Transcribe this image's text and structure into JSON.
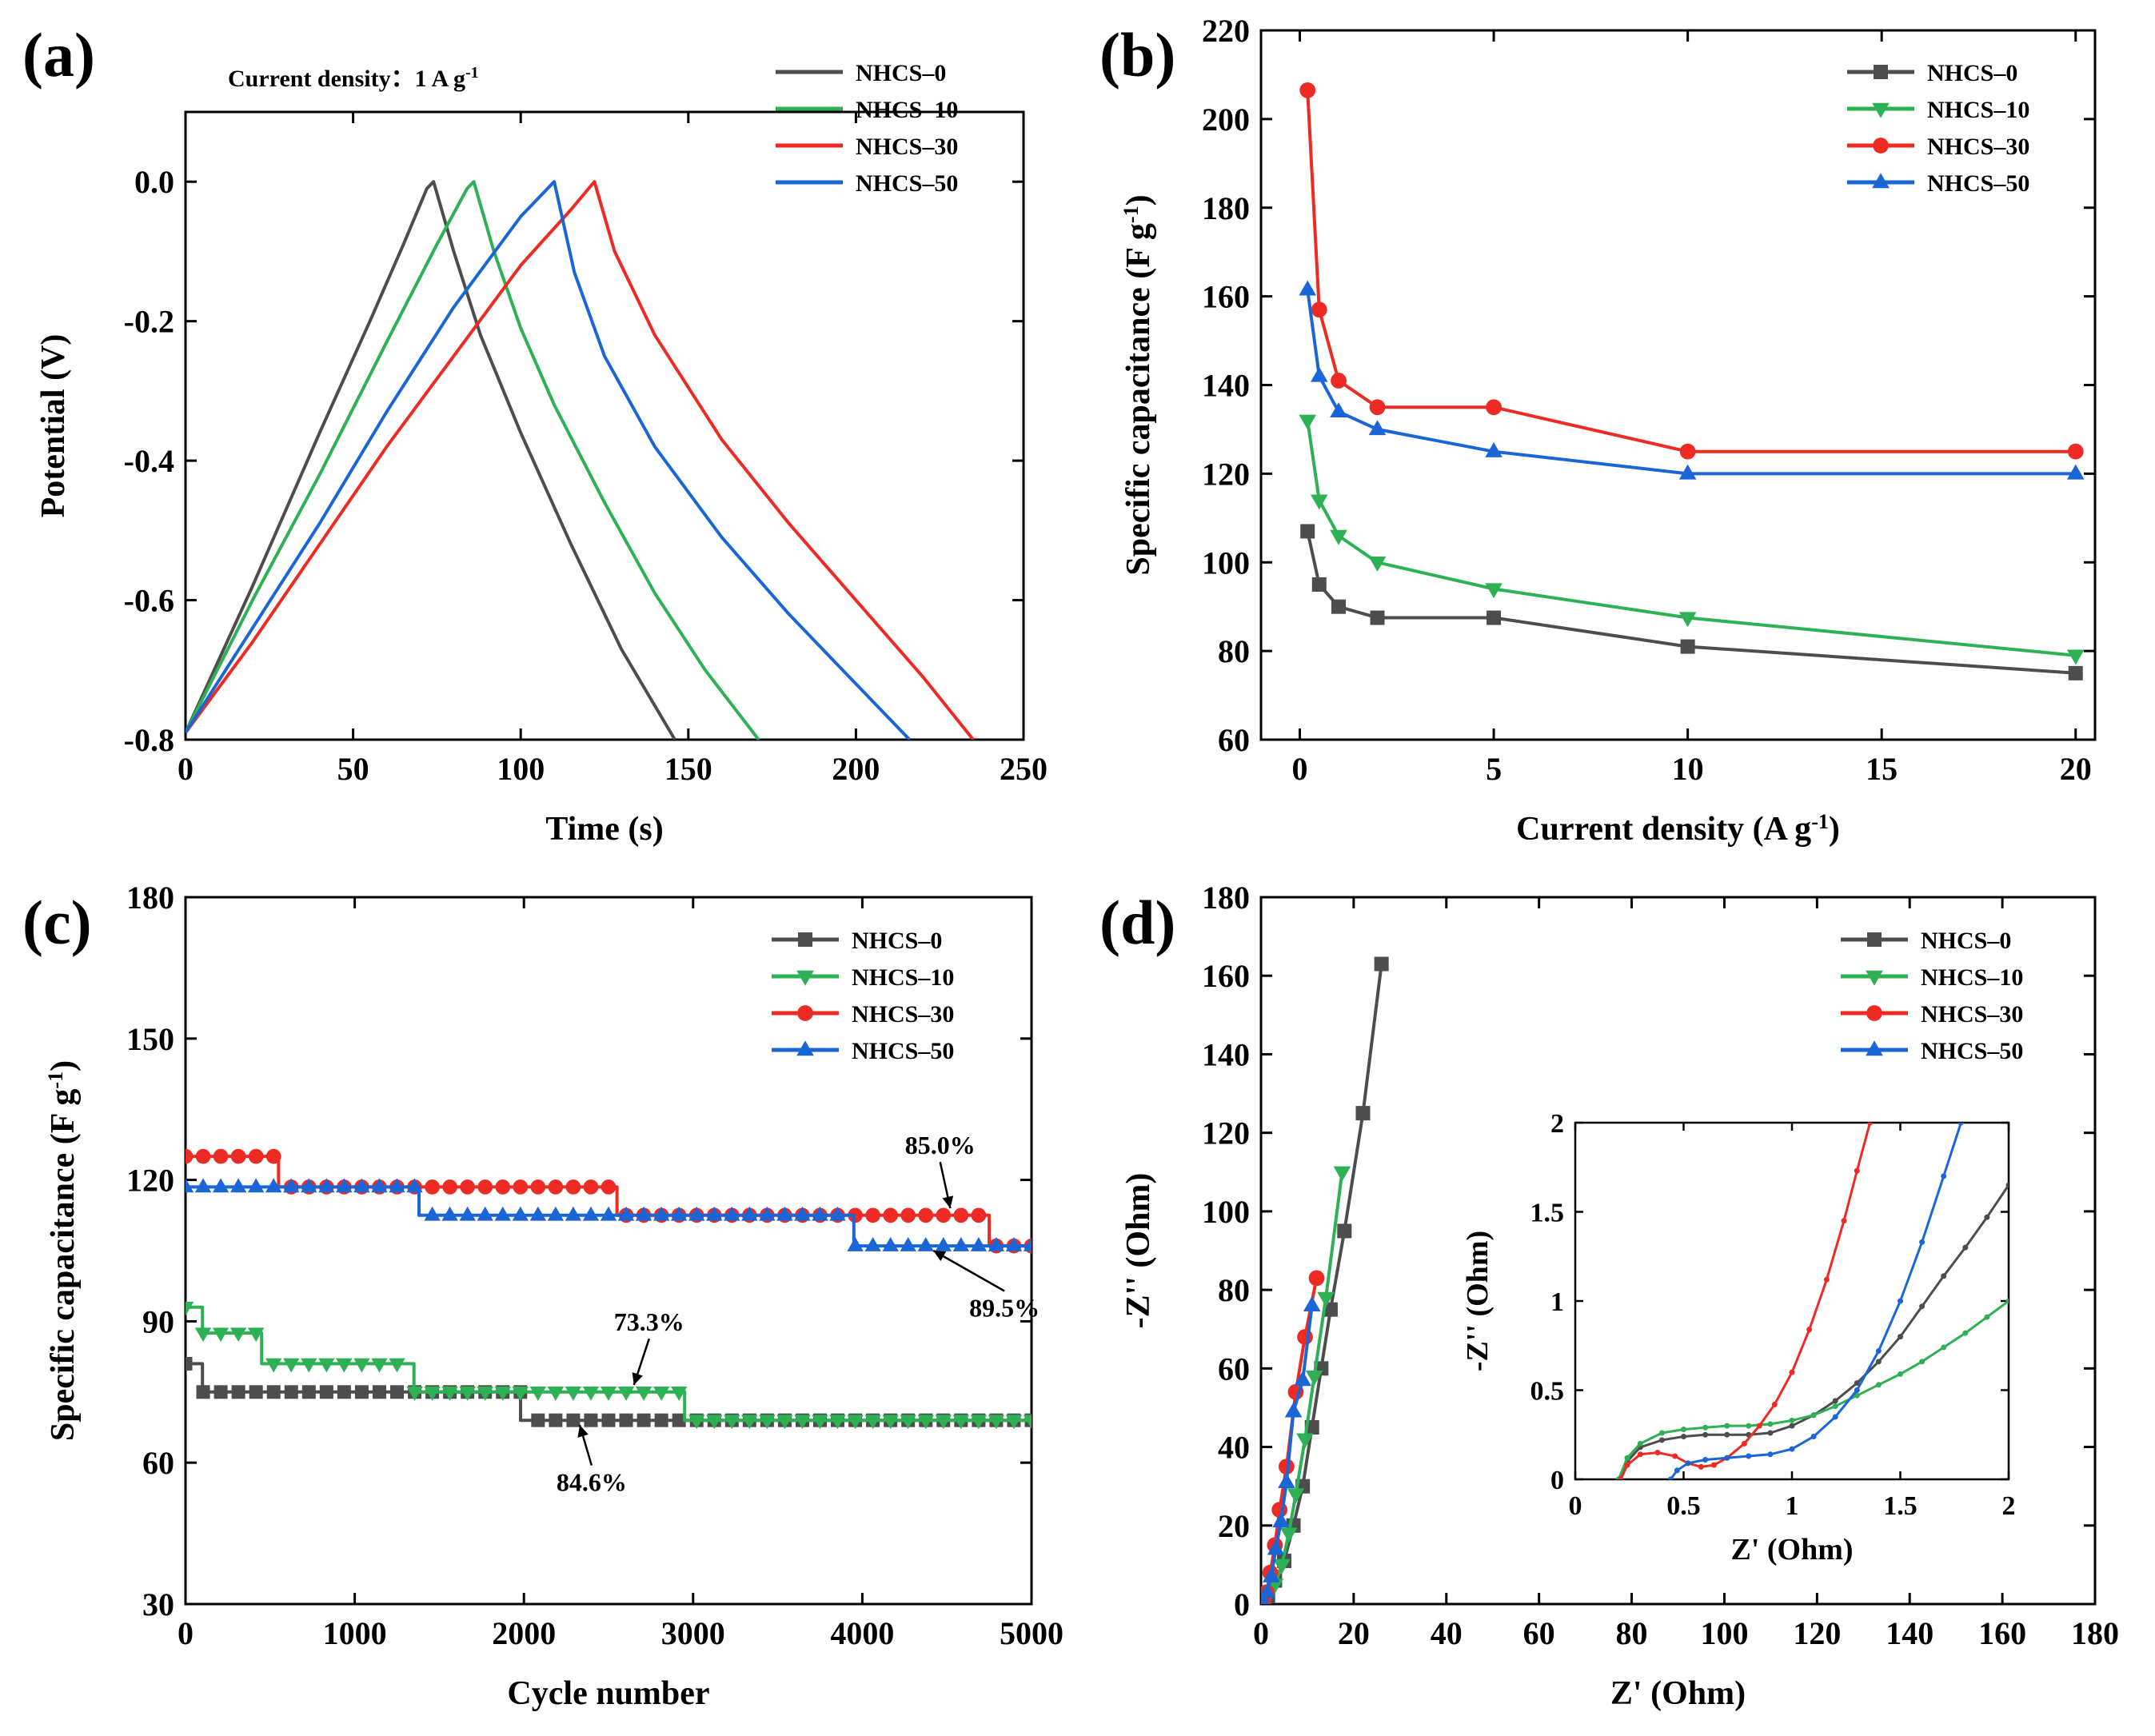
{
  "figure": {
    "panel_labels": [
      "(a)",
      "(b)",
      "(c)",
      "(d)"
    ],
    "colors": {
      "NHCS-0": "#4d4d4d",
      "NHCS-10": "#2db154",
      "NHCS-30": "#ee2a24",
      "NHCS-50": "#1b66d6"
    }
  },
  "chart_data": [
    {
      "id": "a",
      "type": "line",
      "title": "",
      "annotation": "Current density：1 A g",
      "annotation_sup": "-1",
      "xlabel": "Time (s)",
      "ylabel": "Potential (V)",
      "xlim": [
        0,
        250
      ],
      "ylim": [
        -0.8,
        0.1
      ],
      "xticks": [
        0,
        50,
        100,
        150,
        200,
        250
      ],
      "yticks": [
        -0.8,
        -0.6,
        -0.4,
        -0.2,
        0.0
      ],
      "ytick_labels": [
        "-0.8",
        "-0.6",
        "-0.4",
        "-0.2",
        "0.0"
      ],
      "legend_position": "top-right",
      "series": [
        {
          "name": "NHCS–0",
          "key": "NHCS-0",
          "marker": "none",
          "x": [
            0,
            20,
            40,
            55,
            65,
            72,
            74,
            80,
            88,
            100,
            115,
            130,
            146
          ],
          "y": [
            -0.79,
            -0.58,
            -0.36,
            -0.2,
            -0.09,
            -0.01,
            0.0,
            -0.1,
            -0.22,
            -0.36,
            -0.52,
            -0.67,
            -0.8
          ]
        },
        {
          "name": "NHCS–10",
          "key": "NHCS-10",
          "marker": "none",
          "x": [
            0,
            20,
            40,
            60,
            75,
            84,
            86,
            92,
            100,
            110,
            125,
            140,
            155,
            171
          ],
          "y": [
            -0.79,
            -0.6,
            -0.42,
            -0.23,
            -0.09,
            -0.01,
            0.0,
            -0.1,
            -0.21,
            -0.32,
            -0.46,
            -0.59,
            -0.7,
            -0.8
          ]
        },
        {
          "name": "NHCS–30",
          "key": "NHCS-30",
          "marker": "none",
          "x": [
            0,
            20,
            40,
            60,
            80,
            100,
            115,
            122,
            128,
            140,
            160,
            180,
            200,
            220,
            235
          ],
          "y": [
            -0.79,
            -0.66,
            -0.52,
            -0.38,
            -0.25,
            -0.12,
            -0.04,
            0.0,
            -0.1,
            -0.22,
            -0.37,
            -0.49,
            -0.6,
            -0.71,
            -0.8
          ]
        },
        {
          "name": "NHCS–50",
          "key": "NHCS-50",
          "marker": "none",
          "x": [
            0,
            20,
            40,
            60,
            80,
            100,
            108,
            110,
            116,
            125,
            140,
            160,
            180,
            200,
            216
          ],
          "y": [
            -0.79,
            -0.64,
            -0.49,
            -0.33,
            -0.18,
            -0.05,
            -0.01,
            0.0,
            -0.13,
            -0.25,
            -0.38,
            -0.51,
            -0.62,
            -0.72,
            -0.8
          ]
        }
      ]
    },
    {
      "id": "b",
      "type": "line",
      "title": "",
      "xlabel": "Current density (A g",
      "xlabel_sup": "-1",
      "xlabel_end": ")",
      "ylabel": "Specific capacitance (F g",
      "ylabel_sup": "-1",
      "ylabel_end": ")",
      "xlim": [
        -1,
        20.5
      ],
      "ylim": [
        60,
        220
      ],
      "xticks": [
        0,
        5,
        10,
        15,
        20
      ],
      "yticks": [
        60,
        80,
        100,
        120,
        140,
        160,
        180,
        200,
        220
      ],
      "legend_position": "top-right",
      "series": [
        {
          "name": "NHCS–0",
          "key": "NHCS-0",
          "marker": "square",
          "x": [
            0.2,
            0.5,
            1,
            2,
            5,
            10,
            20
          ],
          "y": [
            107,
            95,
            90,
            87.5,
            87.5,
            81,
            75
          ]
        },
        {
          "name": "NHCS–10",
          "key": "NHCS-10",
          "marker": "triangle-down",
          "x": [
            0.2,
            0.5,
            1,
            2,
            5,
            10,
            20
          ],
          "y": [
            132,
            114,
            106,
            100,
            94,
            87.5,
            79
          ]
        },
        {
          "name": "NHCS–30",
          "key": "NHCS-30",
          "marker": "circle",
          "x": [
            0.2,
            0.5,
            1,
            2,
            5,
            10,
            20
          ],
          "y": [
            206.5,
            157,
            141,
            135,
            135,
            125,
            125
          ]
        },
        {
          "name": "NHCS–50",
          "key": "NHCS-50",
          "marker": "triangle-up",
          "x": [
            0.2,
            0.5,
            1,
            2,
            5,
            10,
            20
          ],
          "y": [
            161.5,
            142,
            134,
            130,
            125,
            120,
            120
          ]
        }
      ]
    },
    {
      "id": "c",
      "type": "line",
      "title": "",
      "xlabel": "Cycle number",
      "ylabel": "Specific capacitance (F g",
      "ylabel_sup": "-1",
      "ylabel_end": ")",
      "xlim": [
        0,
        5000
      ],
      "ylim": [
        30,
        180
      ],
      "xticks": [
        0,
        1000,
        2000,
        3000,
        4000,
        5000
      ],
      "yticks": [
        30,
        60,
        90,
        120,
        150,
        180
      ],
      "legend_position": "top-right",
      "series": [
        {
          "name": "NHCS–0",
          "key": "NHCS-0",
          "marker": "square",
          "step": true,
          "x": [
            0,
            100,
            1980,
            5000
          ],
          "y": [
            81,
            75,
            69,
            69
          ]
        },
        {
          "name": "NHCS–10",
          "key": "NHCS-10",
          "marker": "triangle-down",
          "step": true,
          "x": [
            0,
            100,
            450,
            1350,
            2950,
            5000
          ],
          "y": [
            93,
            87.5,
            81,
            75,
            69,
            69
          ]
        },
        {
          "name": "NHCS–30",
          "key": "NHCS-30",
          "marker": "circle",
          "step": true,
          "x": [
            0,
            550,
            2550,
            3950,
            4750,
            5000
          ],
          "y": [
            125,
            118.5,
            112.5,
            112.5,
            106,
            106
          ]
        },
        {
          "name": "NHCS–50",
          "key": "NHCS-50",
          "marker": "triangle-up",
          "step": true,
          "x": [
            0,
            1380,
            3950,
            5000
          ],
          "y": [
            118.5,
            112.5,
            106,
            106
          ]
        }
      ],
      "annotations": [
        {
          "text": "85.0%",
          "x": 4460,
          "y": 125.5,
          "arrow_to": [
            4520,
            114
          ]
        },
        {
          "text": "89.5%",
          "x": 4840,
          "y": 91,
          "arrow_to": [
            4420,
            105
          ]
        },
        {
          "text": "73.3%",
          "x": 2740,
          "y": 88,
          "arrow_to": [
            2650,
            76.5
          ]
        },
        {
          "text": "84.6%",
          "x": 2400,
          "y": 54,
          "arrow_to": [
            2330,
            68
          ]
        }
      ]
    },
    {
      "id": "d",
      "type": "scatter",
      "title": "",
      "xlabel": "Z' (Ohm)",
      "ylabel": "-Z'' (Ohm)",
      "xlim": [
        0,
        180
      ],
      "ylim": [
        0,
        180
      ],
      "xticks": [
        0,
        20,
        40,
        60,
        80,
        100,
        120,
        140,
        160,
        180
      ],
      "yticks": [
        0,
        20,
        40,
        60,
        80,
        100,
        120,
        140,
        160,
        180
      ],
      "legend_position": "top-right",
      "series": [
        {
          "name": "NHCS–0",
          "key": "NHCS-0",
          "marker": "square",
          "x": [
            0.5,
            1.5,
            3,
            5,
            7,
            9,
            11,
            13,
            15,
            18,
            22,
            26
          ],
          "y": [
            0.5,
            2,
            6,
            11,
            20,
            30,
            45,
            60,
            75,
            95,
            125,
            163
          ]
        },
        {
          "name": "NHCS–10",
          "key": "NHCS-10",
          "marker": "triangle-down",
          "x": [
            0.5,
            1.5,
            3,
            4.5,
            6,
            7.5,
            9.5,
            11.5,
            14,
            17.5
          ],
          "y": [
            0.5,
            2,
            5,
            10,
            18,
            28,
            42,
            58,
            78,
            110
          ]
        },
        {
          "name": "NHCS–30",
          "key": "NHCS-30",
          "marker": "circle",
          "x": [
            0.5,
            1.2,
            2,
            3,
            4,
            5.5,
            7.5,
            9.5,
            12
          ],
          "y": [
            0.5,
            3,
            8,
            15,
            24,
            35,
            54,
            68,
            83
          ]
        },
        {
          "name": "NHCS–50",
          "key": "NHCS-50",
          "marker": "triangle-up",
          "x": [
            0.5,
            1.3,
            2.2,
            3.2,
            4.3,
            5.5,
            7,
            9,
            11
          ],
          "y": [
            0.5,
            3,
            7,
            14,
            21,
            31,
            49,
            57,
            76
          ]
        }
      ],
      "inset": {
        "xlabel": "Z' (Ohm)",
        "ylabel": "-Z'' (Ohm)",
        "xlim": [
          0,
          2.0
        ],
        "ylim": [
          0,
          2.0
        ],
        "xticks": [
          0.0,
          0.5,
          1.0,
          1.5,
          2.0
        ],
        "yticks": [
          0.0,
          0.5,
          1.0,
          1.5,
          2.0
        ],
        "series": [
          {
            "name": "NHCS–0",
            "key": "NHCS-0",
            "x": [
              0.2,
              0.24,
              0.3,
              0.4,
              0.5,
              0.6,
              0.7,
              0.8,
              0.9,
              1.0,
              1.1,
              1.2,
              1.3,
              1.4,
              1.5,
              1.6,
              1.7,
              1.8,
              1.9,
              2.0
            ],
            "y": [
              0.0,
              0.1,
              0.18,
              0.22,
              0.24,
              0.25,
              0.25,
              0.25,
              0.26,
              0.3,
              0.36,
              0.44,
              0.54,
              0.66,
              0.8,
              0.97,
              1.14,
              1.3,
              1.47,
              1.65
            ]
          },
          {
            "name": "NHCS–10",
            "key": "NHCS-10",
            "x": [
              0.2,
              0.24,
              0.3,
              0.4,
              0.5,
              0.6,
              0.7,
              0.8,
              0.9,
              1.0,
              1.1,
              1.2,
              1.3,
              1.4,
              1.5,
              1.6,
              1.7,
              1.8,
              1.9,
              2.0
            ],
            "y": [
              0.0,
              0.12,
              0.2,
              0.26,
              0.28,
              0.29,
              0.3,
              0.3,
              0.31,
              0.33,
              0.36,
              0.41,
              0.47,
              0.53,
              0.59,
              0.66,
              0.74,
              0.82,
              0.91,
              1.0
            ]
          },
          {
            "name": "NHCS–30",
            "key": "NHCS-30",
            "x": [
              0.21,
              0.24,
              0.3,
              0.38,
              0.46,
              0.52,
              0.58,
              0.64,
              0.7,
              0.78,
              0.85,
              0.92,
              1.0,
              1.08,
              1.16,
              1.24,
              1.3,
              1.36
            ],
            "y": [
              0.0,
              0.08,
              0.14,
              0.15,
              0.13,
              0.09,
              0.07,
              0.08,
              0.12,
              0.2,
              0.3,
              0.42,
              0.6,
              0.84,
              1.12,
              1.45,
              1.73,
              2.0
            ]
          },
          {
            "name": "NHCS–50",
            "key": "NHCS-50",
            "x": [
              0.44,
              0.47,
              0.52,
              0.6,
              0.7,
              0.8,
              0.9,
              1.0,
              1.1,
              1.2,
              1.3,
              1.4,
              1.5,
              1.6,
              1.7,
              1.78
            ],
            "y": [
              0.0,
              0.05,
              0.09,
              0.11,
              0.12,
              0.13,
              0.14,
              0.17,
              0.24,
              0.35,
              0.5,
              0.72,
              1.0,
              1.33,
              1.7,
              2.0
            ]
          }
        ]
      }
    }
  ]
}
